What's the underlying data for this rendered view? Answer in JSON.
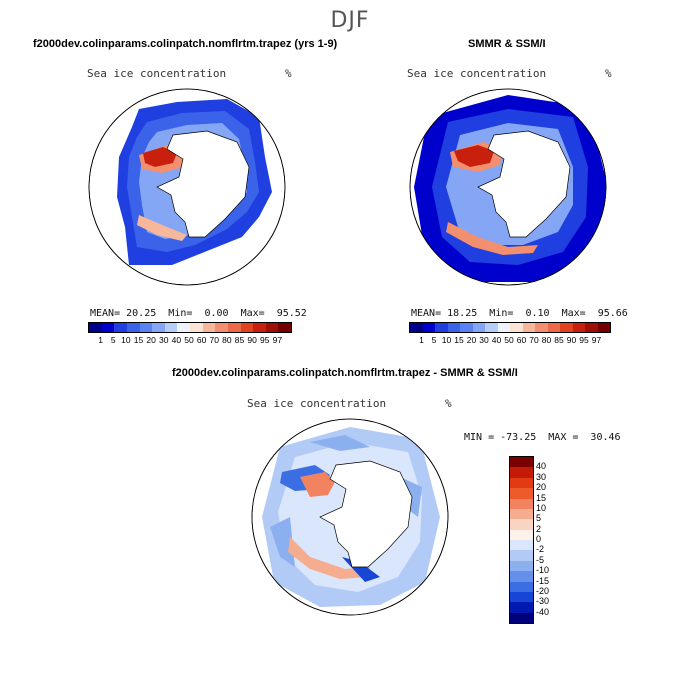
{
  "season": "DJF",
  "variable_label": "Sea ice concentration",
  "unit": "%",
  "panels": [
    {
      "id": "model",
      "title": "f2000dev.colinparams.colinpatch.nomflrtm.trapez (yrs 1-9)",
      "mean_label": "MEAN=",
      "mean": "20.25",
      "min_label": "Min=",
      "min": "0.00",
      "max_label": "Max=",
      "max": "95.52"
    },
    {
      "id": "obs",
      "title": "SMMR & SSM/I",
      "mean_label": "MEAN=",
      "mean": "18.25",
      "min_label": "Min=",
      "min": "0.10",
      "max_label": "Max=",
      "max": "95.66"
    }
  ],
  "diff": {
    "title": "f2000dev.colinparams.colinpatch.nomflrtm.trapez - SMMR & SSM/I",
    "minmax": "MIN = -73.25  MAX =  30.46"
  },
  "conc_colorbar": {
    "ticks": [
      "1",
      "5",
      "10",
      "15",
      "20",
      "30",
      "40",
      "50",
      "60",
      "70",
      "80",
      "85",
      "90",
      "95",
      "97"
    ],
    "colors": [
      "#00008b",
      "#0000cd",
      "#1f3fe0",
      "#3a63ea",
      "#5a82f0",
      "#84a6f5",
      "#b7cdf8",
      "#eef3fb",
      "#fbe3d5",
      "#f7b79b",
      "#f28f6e",
      "#ec6a47",
      "#e2421f",
      "#c8200c",
      "#a00f05",
      "#720000"
    ]
  },
  "diff_colorbar": {
    "labels": [
      "40",
      "30",
      "20",
      "15",
      "10",
      "5",
      "2",
      "0",
      "-2",
      "-5",
      "-10",
      "-15",
      "-20",
      "-30",
      "-40"
    ],
    "colors": [
      "#7a0000",
      "#c41a08",
      "#e23a12",
      "#ef5a2a",
      "#f28360",
      "#f6ac8f",
      "#f9d4c2",
      "#fdf2ea",
      "#d9e6fb",
      "#b2cbf6",
      "#8bafef",
      "#6490ea",
      "#3c6ee3",
      "#1745d4",
      "#0019b0",
      "#00007a"
    ]
  }
}
